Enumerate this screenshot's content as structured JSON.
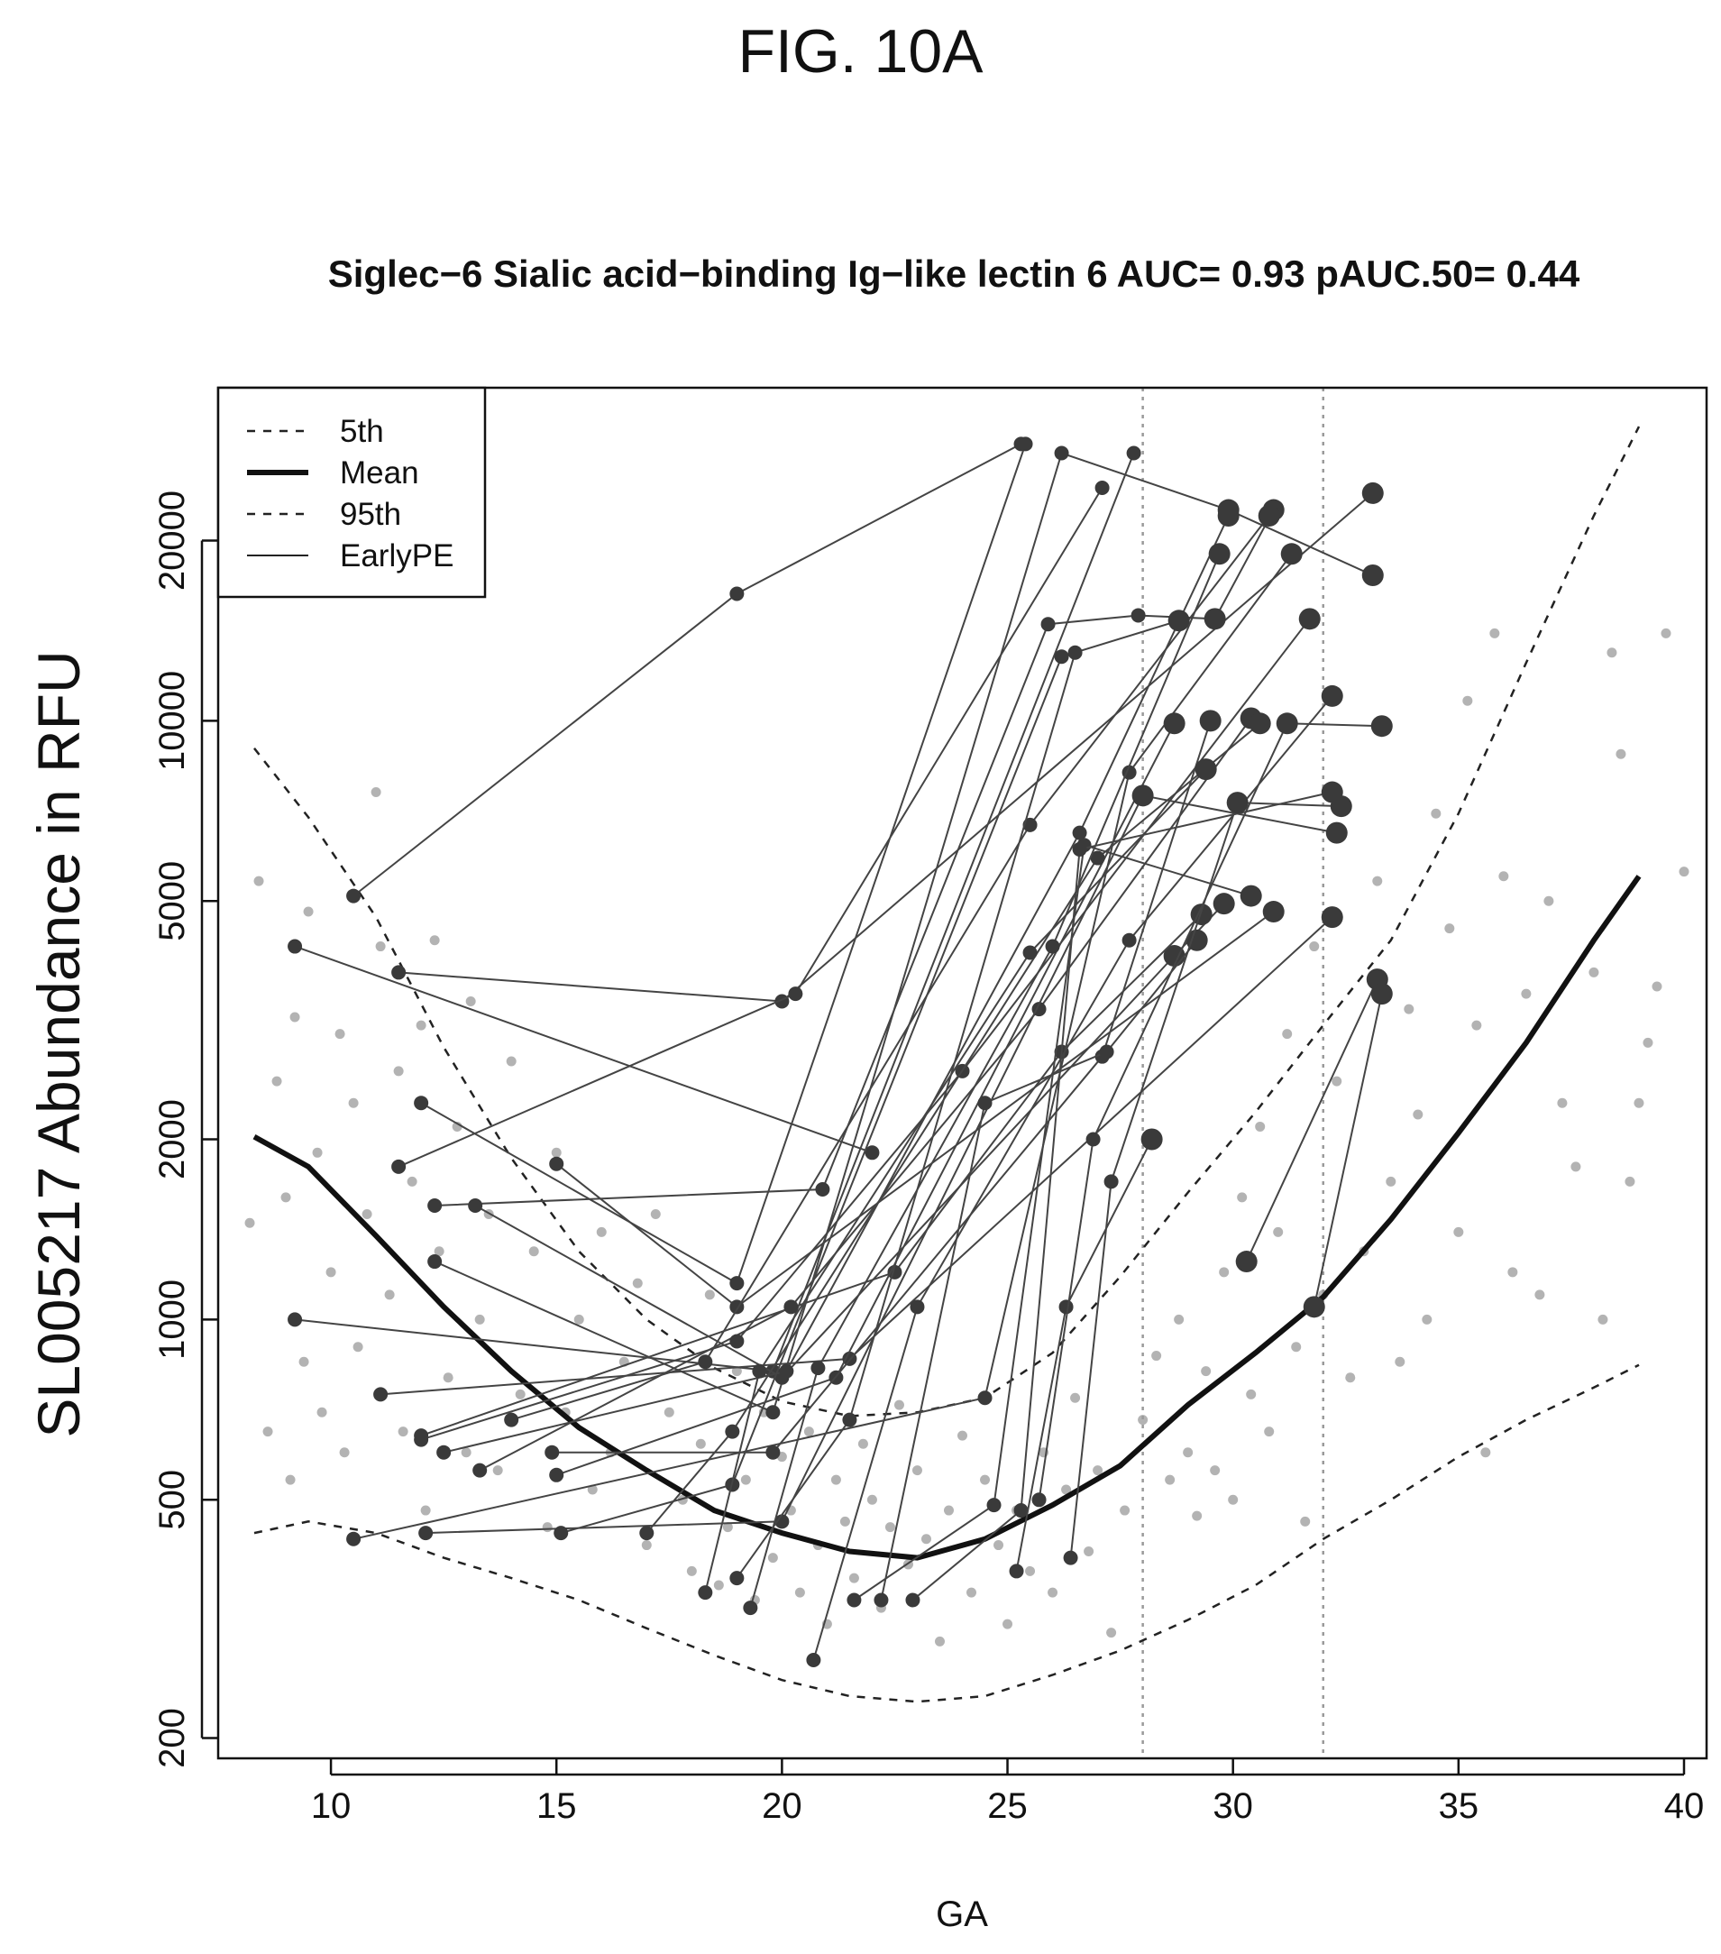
{
  "figure_label": "FIG. 10A",
  "chart_data": {
    "type": "scatter",
    "title": "Siglec−6 Sialic acid−binding Ig−like lectin 6 AUC= 0.93 pAUC.50= 0.44",
    "xlabel": "GA",
    "ylabel": "SL005217 Abundance in RFU",
    "xlim": [
      7.5,
      40.5
    ],
    "ylim": [
      185,
      36000
    ],
    "yscale": "log",
    "xticks": [
      10,
      15,
      20,
      25,
      30,
      35,
      40
    ],
    "yticks": [
      200,
      500,
      1000,
      2000,
      5000,
      10000,
      20000
    ],
    "grid": false,
    "vlines": [
      28,
      32
    ],
    "legend": {
      "position": "top-left",
      "entries": [
        {
          "label": "5th",
          "style": "dashed"
        },
        {
          "label": "Mean",
          "style": "thick"
        },
        {
          "label": "95th",
          "style": "dashed"
        },
        {
          "label": "EarlyPE",
          "style": "thin"
        }
      ]
    },
    "curves": {
      "mean": [
        [
          8.3,
          2020
        ],
        [
          9.5,
          1800
        ],
        [
          11,
          1380
        ],
        [
          12.5,
          1050
        ],
        [
          14,
          820
        ],
        [
          15.5,
          660
        ],
        [
          17,
          560
        ],
        [
          18.5,
          480
        ],
        [
          20,
          440
        ],
        [
          21.5,
          410
        ],
        [
          23,
          400
        ],
        [
          24.5,
          430
        ],
        [
          26,
          490
        ],
        [
          27.5,
          570
        ],
        [
          29,
          720
        ],
        [
          30.5,
          880
        ],
        [
          32,
          1090
        ],
        [
          33.5,
          1470
        ],
        [
          35,
          2050
        ],
        [
          36.5,
          2900
        ],
        [
          38,
          4300
        ],
        [
          39,
          5500
        ]
      ],
      "p95": [
        [
          8.3,
          9000
        ],
        [
          9.5,
          6900
        ],
        [
          11,
          4700
        ],
        [
          12.5,
          2850
        ],
        [
          14,
          1860
        ],
        [
          15.5,
          1300
        ],
        [
          17,
          1000
        ],
        [
          18.5,
          830
        ],
        [
          20,
          730
        ],
        [
          21.5,
          690
        ],
        [
          23,
          700
        ],
        [
          24.5,
          740
        ],
        [
          26,
          880
        ],
        [
          27.5,
          1180
        ],
        [
          29,
          1630
        ],
        [
          30.5,
          2220
        ],
        [
          32,
          3100
        ],
        [
          33.5,
          4300
        ],
        [
          35,
          7000
        ],
        [
          36.5,
          12500
        ],
        [
          38,
          22000
        ],
        [
          39,
          31000
        ]
      ],
      "p5": [
        [
          8.3,
          440
        ],
        [
          9.5,
          460
        ],
        [
          11,
          440
        ],
        [
          12.5,
          400
        ],
        [
          14,
          370
        ],
        [
          15.5,
          340
        ],
        [
          17,
          305
        ],
        [
          18.5,
          275
        ],
        [
          20,
          250
        ],
        [
          21.5,
          235
        ],
        [
          23,
          230
        ],
        [
          24.5,
          235
        ],
        [
          26,
          255
        ],
        [
          27.5,
          280
        ],
        [
          29,
          315
        ],
        [
          30.5,
          360
        ],
        [
          32,
          430
        ],
        [
          33.5,
          500
        ],
        [
          35,
          590
        ],
        [
          36.5,
          680
        ],
        [
          38,
          770
        ],
        [
          39,
          840
        ]
      ]
    },
    "control_points": [
      [
        8.2,
        1450
      ],
      [
        8.4,
        5400
      ],
      [
        8.6,
        650
      ],
      [
        8.8,
        2500
      ],
      [
        9,
        1600
      ],
      [
        9.1,
        540
      ],
      [
        9.2,
        3200
      ],
      [
        9.4,
        850
      ],
      [
        9.5,
        4800
      ],
      [
        9.7,
        1900
      ],
      [
        9.8,
        700
      ],
      [
        10,
        1200
      ],
      [
        10.2,
        3000
      ],
      [
        10.3,
        600
      ],
      [
        10.5,
        2300
      ],
      [
        10.6,
        900
      ],
      [
        10.8,
        1500
      ],
      [
        11,
        7600
      ],
      [
        11.1,
        4200
      ],
      [
        11.3,
        1100
      ],
      [
        11.5,
        2600
      ],
      [
        11.6,
        650
      ],
      [
        11.8,
        1700
      ],
      [
        12,
        3100
      ],
      [
        12.1,
        480
      ],
      [
        12.3,
        4300
      ],
      [
        12.4,
        1300
      ],
      [
        12.6,
        800
      ],
      [
        12.8,
        2100
      ],
      [
        13,
        600
      ],
      [
        13.1,
        3400
      ],
      [
        13.3,
        1000
      ],
      [
        13.5,
        1500
      ],
      [
        13.7,
        560
      ],
      [
        14,
        2700
      ],
      [
        14.2,
        750
      ],
      [
        14.5,
        1300
      ],
      [
        14.8,
        450
      ],
      [
        15,
        1900
      ],
      [
        15.2,
        700
      ],
      [
        15.5,
        1000
      ],
      [
        15.8,
        520
      ],
      [
        16,
        1400
      ],
      [
        16.2,
        600
      ],
      [
        16.5,
        850
      ],
      [
        16.8,
        1150
      ],
      [
        17,
        420
      ],
      [
        17.2,
        1500
      ],
      [
        17.5,
        700
      ],
      [
        17.8,
        500
      ],
      [
        18,
        380
      ],
      [
        18.2,
        620
      ],
      [
        18.4,
        1100
      ],
      [
        18.6,
        360
      ],
      [
        18.8,
        450
      ],
      [
        19,
        820
      ],
      [
        19.2,
        540
      ],
      [
        19.4,
        340
      ],
      [
        19.6,
        700
      ],
      [
        19.8,
        400
      ],
      [
        20,
        590
      ],
      [
        20.2,
        480
      ],
      [
        20.4,
        350
      ],
      [
        20.6,
        650
      ],
      [
        20.8,
        420
      ],
      [
        21,
        310
      ],
      [
        21.2,
        540
      ],
      [
        21.4,
        460
      ],
      [
        21.6,
        370
      ],
      [
        21.8,
        620
      ],
      [
        22,
        500
      ],
      [
        22.2,
        330
      ],
      [
        22.4,
        450
      ],
      [
        22.6,
        720
      ],
      [
        22.8,
        390
      ],
      [
        23,
        560
      ],
      [
        23.2,
        430
      ],
      [
        23.5,
        290
      ],
      [
        23.7,
        480
      ],
      [
        24,
        640
      ],
      [
        24.2,
        350
      ],
      [
        24.5,
        540
      ],
      [
        24.8,
        420
      ],
      [
        25,
        310
      ],
      [
        25.2,
        480
      ],
      [
        25.5,
        380
      ],
      [
        25.8,
        600
      ],
      [
        26,
        350
      ],
      [
        26.3,
        520
      ],
      [
        26.5,
        740
      ],
      [
        26.8,
        410
      ],
      [
        27,
        560
      ],
      [
        27.3,
        300
      ],
      [
        27.6,
        480
      ],
      [
        28,
        680
      ],
      [
        28.3,
        870
      ],
      [
        28.6,
        540
      ],
      [
        28.8,
        1000
      ],
      [
        29,
        600
      ],
      [
        29.2,
        470
      ],
      [
        29.4,
        820
      ],
      [
        29.6,
        560
      ],
      [
        29.8,
        1200
      ],
      [
        30,
        500
      ],
      [
        30.2,
        1600
      ],
      [
        30.4,
        750
      ],
      [
        30.6,
        2100
      ],
      [
        30.8,
        650
      ],
      [
        31,
        1400
      ],
      [
        31.2,
        3000
      ],
      [
        31.4,
        900
      ],
      [
        31.6,
        460
      ],
      [
        31.8,
        4200
      ],
      [
        32,
        1100
      ],
      [
        32.3,
        2500
      ],
      [
        32.6,
        800
      ],
      [
        32.9,
        1300
      ],
      [
        33.2,
        5400
      ],
      [
        33.5,
        1700
      ],
      [
        33.7,
        850
      ],
      [
        33.9,
        3300
      ],
      [
        34.1,
        2200
      ],
      [
        34.3,
        1000
      ],
      [
        34.5,
        7000
      ],
      [
        34.8,
        4500
      ],
      [
        35,
        1400
      ],
      [
        35.2,
        10800
      ],
      [
        35.4,
        3100
      ],
      [
        35.6,
        600
      ],
      [
        35.8,
        14000
      ],
      [
        36,
        5500
      ],
      [
        36.2,
        1200
      ],
      [
        36.5,
        3500
      ],
      [
        36.8,
        1100
      ],
      [
        37,
        5000
      ],
      [
        37.3,
        2300
      ],
      [
        37.6,
        1800
      ],
      [
        38,
        3800
      ],
      [
        38.2,
        1000
      ],
      [
        38.4,
        13000
      ],
      [
        38.6,
        8800
      ],
      [
        38.8,
        1700
      ],
      [
        39,
        2300
      ],
      [
        39.2,
        2900
      ],
      [
        39.4,
        3600
      ],
      [
        39.6,
        14000
      ],
      [
        40,
        5600
      ]
    ],
    "series": [
      {
        "values": [
          [
            10.5,
            5100
          ],
          [
            19,
            16300
          ],
          [
            25.3,
            29000
          ]
        ]
      },
      {
        "values": [
          [
            9.2,
            4200
          ],
          [
            22,
            1900
          ]
        ]
      },
      {
        "values": [
          [
            11.5,
            3800
          ],
          [
            20,
            3400
          ],
          [
            33.1,
            24000
          ]
        ]
      },
      {
        "values": [
          [
            12,
            2300
          ],
          [
            19,
            1150
          ],
          [
            25.4,
            29000
          ]
        ]
      },
      {
        "values": [
          [
            11.5,
            1800
          ],
          [
            20.3,
            3500
          ],
          [
            27.1,
            24500
          ]
        ]
      },
      {
        "values": [
          [
            12.3,
            1550
          ],
          [
            20.9,
            1650
          ],
          [
            25.9,
            14500
          ],
          [
            27.9,
            15000
          ],
          [
            29.6,
            14800
          ],
          [
            30.9,
            22500
          ]
        ]
      },
      {
        "values": [
          [
            12.3,
            1250
          ],
          [
            19.8,
            700
          ],
          [
            26.2,
            28000
          ],
          [
            29.9,
            22500
          ],
          [
            33.1,
            17500
          ]
        ]
      },
      {
        "values": [
          [
            9.2,
            1000
          ],
          [
            19.8,
            820
          ],
          [
            27.8,
            28000
          ]
        ]
      },
      {
        "values": [
          [
            15,
            1820
          ],
          [
            19,
            1050
          ],
          [
            30.9,
            4800
          ]
        ]
      },
      {
        "values": [
          [
            13.2,
            1550
          ],
          [
            20,
            800
          ],
          [
            28.7,
            4050
          ],
          [
            29.8,
            4950
          ]
        ]
      },
      {
        "values": [
          [
            11.1,
            750
          ],
          [
            21.5,
            860
          ],
          [
            32.2,
            4700
          ]
        ]
      },
      {
        "values": [
          [
            14,
            680
          ],
          [
            18.3,
            850
          ],
          [
            25.5,
            6700
          ],
          [
            30.8,
            22000
          ]
        ]
      },
      {
        "values": [
          [
            12,
            640
          ],
          [
            22.5,
            1200
          ],
          [
            26.2,
            2800
          ],
          [
            29.3,
            4750
          ]
        ]
      },
      {
        "values": [
          [
            12.5,
            600
          ],
          [
            20.1,
            820
          ],
          [
            26.6,
            6500
          ],
          [
            29.9,
            22000
          ]
        ]
      },
      {
        "values": [
          [
            13.3,
            560
          ],
          [
            20.2,
            1050
          ],
          [
            25.7,
            3300
          ],
          [
            30.4,
            10100
          ]
        ]
      },
      {
        "values": [
          [
            10.5,
            430
          ],
          [
            24.5,
            740
          ],
          [
            27.7,
            8200
          ],
          [
            31.3,
            19000
          ]
        ]
      },
      {
        "values": [
          [
            12,
            630
          ],
          [
            19,
            920
          ],
          [
            24,
            2600
          ],
          [
            31.7,
            14800
          ]
        ]
      },
      {
        "values": [
          [
            15,
            550
          ],
          [
            21.2,
            800
          ],
          [
            28.7,
            9900
          ]
        ]
      },
      {
        "values": [
          [
            14.9,
            600
          ],
          [
            19.8,
            600
          ],
          [
            27.1,
            2750
          ],
          [
            29.5,
            10000
          ]
        ]
      },
      {
        "values": [
          [
            12.1,
            440
          ],
          [
            20,
            460
          ],
          [
            28,
            7500
          ],
          [
            32.3,
            6500
          ]
        ]
      },
      {
        "values": [
          [
            17,
            440
          ],
          [
            18.9,
            650
          ],
          [
            27,
            5900
          ],
          [
            30.6,
            9900
          ]
        ]
      },
      {
        "values": [
          [
            15.1,
            440
          ],
          [
            18.9,
            530
          ],
          [
            26.2,
            12800
          ],
          [
            28.8,
            14700
          ]
        ]
      },
      {
        "values": [
          [
            18.3,
            350
          ],
          [
            19.5,
            820
          ],
          [
            25.5,
            4100
          ],
          [
            29.4,
            8300
          ]
        ]
      },
      {
        "values": [
          [
            19,
            370
          ],
          [
            21.5,
            680
          ],
          [
            26.5,
            13000
          ]
        ]
      },
      {
        "values": [
          [
            19.3,
            330
          ],
          [
            20.8,
            830
          ],
          [
            26,
            4200
          ],
          [
            29.7,
            19000
          ]
        ]
      },
      {
        "values": [
          [
            20.7,
            270
          ],
          [
            23,
            1050
          ],
          [
            27.7,
            4300
          ],
          [
            32.2,
            11000
          ]
        ]
      },
      {
        "values": [
          [
            21.6,
            340
          ],
          [
            24.7,
            490
          ],
          [
            26.7,
            6200
          ],
          [
            30.4,
            5100
          ]
        ]
      },
      {
        "values": [
          [
            22.2,
            340
          ],
          [
            24.5,
            2300
          ],
          [
            27.2,
            2800
          ],
          [
            29.2,
            4300
          ]
        ]
      },
      {
        "values": [
          [
            22.9,
            340
          ],
          [
            25.3,
            480
          ],
          [
            26.6,
            6100
          ],
          [
            32.2,
            7600
          ]
        ]
      },
      {
        "values": [
          [
            25.2,
            380
          ],
          [
            26.3,
            1050
          ],
          [
            28.2,
            2000
          ]
        ]
      },
      {
        "values": [
          [
            26.4,
            400
          ],
          [
            27.3,
            1700
          ],
          [
            30.1,
            7300
          ],
          [
            32.4,
            7200
          ]
        ]
      },
      {
        "values": [
          [
            25.7,
            500
          ],
          [
            26.9,
            2000
          ],
          [
            31.2,
            9900
          ],
          [
            33.3,
            9800
          ]
        ]
      },
      {
        "values": [
          [
            30.3,
            1250
          ],
          [
            33.2,
            3700
          ]
        ]
      },
      {
        "values": [
          [
            31.8,
            1050
          ],
          [
            33.3,
            3500
          ]
        ]
      }
    ]
  }
}
